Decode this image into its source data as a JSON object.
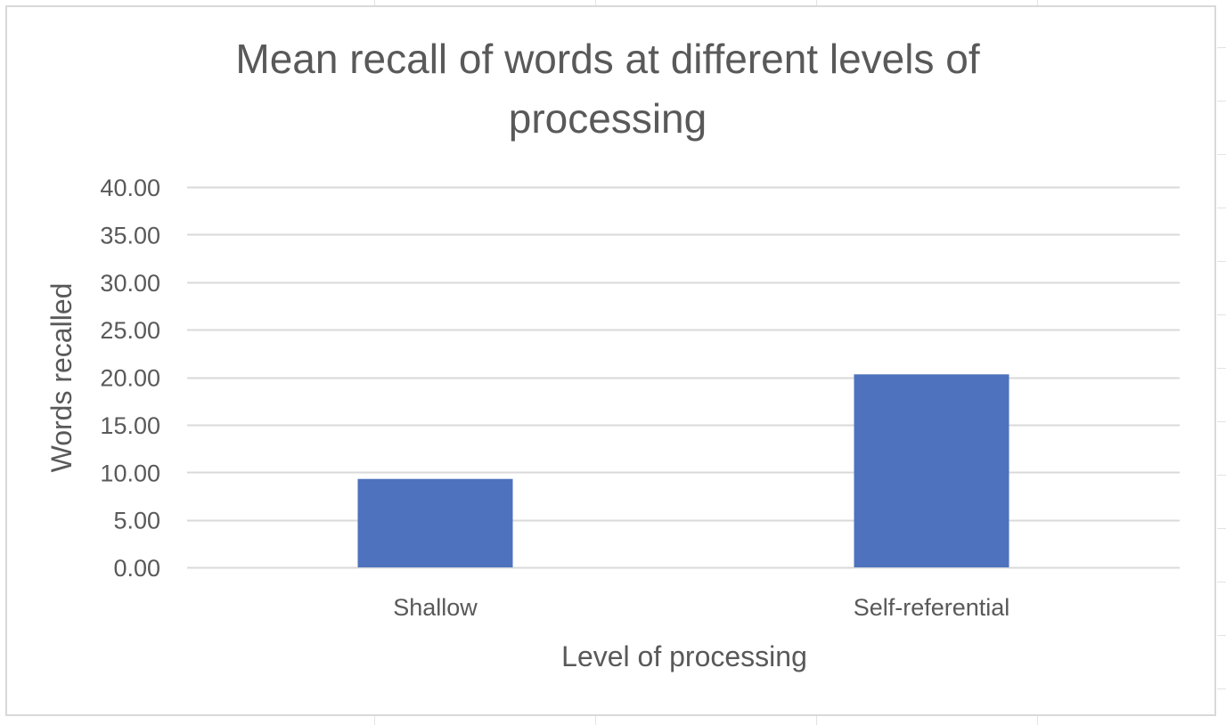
{
  "chart_data": {
    "type": "bar",
    "title": "Mean recall of words at different levels of processing",
    "title_lines": [
      "Mean recall of words at different levels of",
      "processing"
    ],
    "xlabel": "Level of processing",
    "ylabel": "Words recalled",
    "categories": [
      "Shallow",
      "Self-referential"
    ],
    "values": [
      9.3,
      20.3
    ],
    "ylim": [
      0,
      40
    ],
    "yticks": [
      "0.00",
      "5.00",
      "10.00",
      "15.00",
      "20.00",
      "25.00",
      "30.00",
      "35.00",
      "40.00"
    ],
    "grid": true,
    "legend": "none",
    "colors": {
      "bar": "#4e72bd",
      "gridline": "#d9d9d9",
      "text": "#595959"
    }
  }
}
